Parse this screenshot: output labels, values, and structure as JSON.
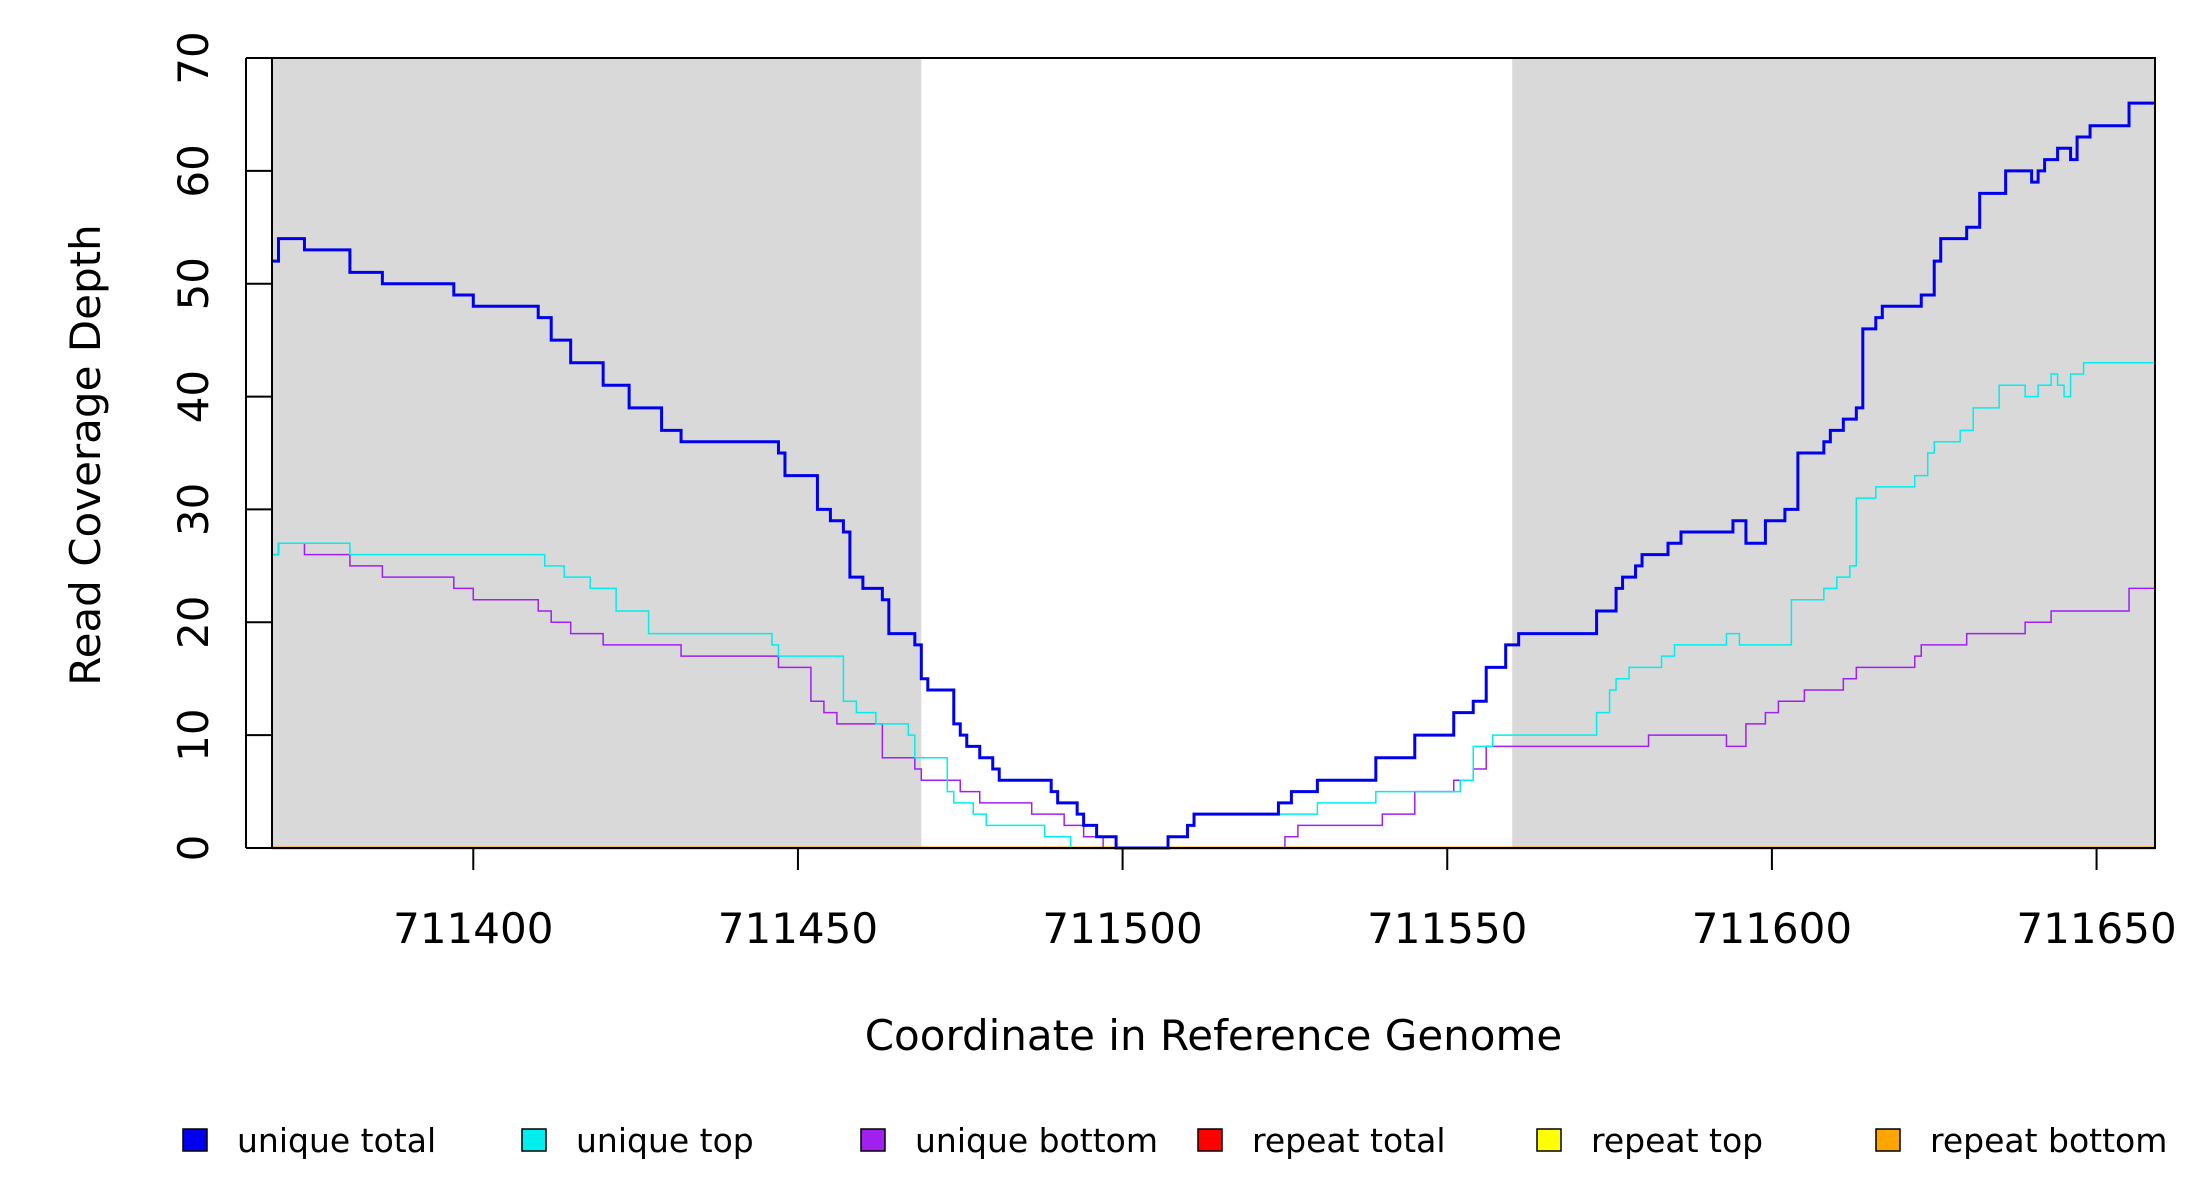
{
  "chart_data": {
    "type": "line",
    "xlabel": "Coordinate in Reference Genome",
    "ylabel": "Read Coverage Depth",
    "xlim": [
      711369,
      711659
    ],
    "ylim": [
      0,
      70
    ],
    "x_ticks": [
      711400,
      711450,
      711500,
      711550,
      711600,
      711650
    ],
    "x_tick_labels": [
      "711400",
      "711450",
      "711500",
      "711550",
      "711600",
      "711650"
    ],
    "y_ticks": [
      0,
      10,
      20,
      30,
      40,
      50,
      60,
      70
    ],
    "y_tick_labels": [
      "0",
      "10",
      "20",
      "30",
      "40",
      "50",
      "60",
      "70"
    ],
    "shaded_regions": [
      {
        "x": [
          711369,
          711469
        ],
        "color": "#d9d9d9"
      },
      {
        "x": [
          711560,
          711659
        ],
        "color": "#d9d9d9"
      }
    ],
    "grid": false,
    "legend_position": "bottom",
    "series": [
      {
        "name": "unique total",
        "color": "#0000ee",
        "stroke": "thick",
        "points": [
          [
            711369,
            52
          ],
          [
            711370,
            54
          ],
          [
            711374,
            53
          ],
          [
            711381,
            51
          ],
          [
            711386,
            50
          ],
          [
            711397,
            49
          ],
          [
            711400,
            48
          ],
          [
            711410,
            47
          ],
          [
            711412,
            45
          ],
          [
            711415,
            43
          ],
          [
            711420,
            41
          ],
          [
            711424,
            39
          ],
          [
            711429,
            37
          ],
          [
            711432,
            36
          ],
          [
            711447,
            35
          ],
          [
            711448,
            33
          ],
          [
            711453,
            30
          ],
          [
            711455,
            29
          ],
          [
            711457,
            28
          ],
          [
            711458,
            24
          ],
          [
            711460,
            23
          ],
          [
            711463,
            22
          ],
          [
            711464,
            19
          ],
          [
            711468,
            18
          ],
          [
            711469,
            15
          ],
          [
            711470,
            14
          ],
          [
            711474,
            11
          ],
          [
            711475,
            10
          ],
          [
            711476,
            9
          ],
          [
            711478,
            8
          ],
          [
            711480,
            7
          ],
          [
            711481,
            6
          ],
          [
            711489,
            5
          ],
          [
            711490,
            4
          ],
          [
            711493,
            3
          ],
          [
            711494,
            2
          ],
          [
            711496,
            1
          ],
          [
            711499,
            0
          ],
          [
            711507,
            1
          ],
          [
            711510,
            2
          ],
          [
            711511,
            3
          ],
          [
            711524,
            4
          ],
          [
            711526,
            5
          ],
          [
            711530,
            6
          ],
          [
            711539,
            8
          ],
          [
            711545,
            10
          ],
          [
            711551,
            12
          ],
          [
            711554,
            13
          ],
          [
            711556,
            16
          ],
          [
            711559,
            18
          ],
          [
            711561,
            19
          ],
          [
            711573,
            21
          ],
          [
            711576,
            23
          ],
          [
            711577,
            24
          ],
          [
            711579,
            25
          ],
          [
            711580,
            26
          ],
          [
            711584,
            27
          ],
          [
            711586,
            28
          ],
          [
            711594,
            29
          ],
          [
            711596,
            27
          ],
          [
            711599,
            29
          ],
          [
            711602,
            30
          ],
          [
            711604,
            35
          ],
          [
            711608,
            36
          ],
          [
            711609,
            37
          ],
          [
            711611,
            38
          ],
          [
            711613,
            39
          ],
          [
            711614,
            46
          ],
          [
            711616,
            47
          ],
          [
            711617,
            48
          ],
          [
            711623,
            49
          ],
          [
            711625,
            52
          ],
          [
            711626,
            54
          ],
          [
            711630,
            55
          ],
          [
            711632,
            58
          ],
          [
            711636,
            60
          ],
          [
            711640,
            59
          ],
          [
            711641,
            60
          ],
          [
            711642,
            61
          ],
          [
            711644,
            62
          ],
          [
            711646,
            61
          ],
          [
            711647,
            63
          ],
          [
            711649,
            64
          ],
          [
            711655,
            66
          ],
          [
            711659,
            66
          ]
        ]
      },
      {
        "name": "unique top",
        "color": "#00eeee",
        "stroke": "thin",
        "points": [
          [
            711369,
            26
          ],
          [
            711370,
            27
          ],
          [
            711381,
            26
          ],
          [
            711411,
            25
          ],
          [
            711414,
            24
          ],
          [
            711418,
            23
          ],
          [
            711422,
            21
          ],
          [
            711427,
            19
          ],
          [
            711446,
            18
          ],
          [
            711447,
            17
          ],
          [
            711457,
            13
          ],
          [
            711459,
            12
          ],
          [
            711462,
            11
          ],
          [
            711467,
            10
          ],
          [
            711468,
            8
          ],
          [
            711473,
            5
          ],
          [
            711474,
            4
          ],
          [
            711477,
            3
          ],
          [
            711479,
            2
          ],
          [
            711488,
            1
          ],
          [
            711492,
            0
          ],
          [
            711507,
            1
          ],
          [
            711510,
            2
          ],
          [
            711511,
            3
          ],
          [
            711530,
            4
          ],
          [
            711539,
            5
          ],
          [
            711552,
            6
          ],
          [
            711554,
            9
          ],
          [
            711557,
            10
          ],
          [
            711573,
            12
          ],
          [
            711575,
            14
          ],
          [
            711576,
            15
          ],
          [
            711578,
            16
          ],
          [
            711583,
            17
          ],
          [
            711585,
            18
          ],
          [
            711593,
            19
          ],
          [
            711595,
            18
          ],
          [
            711603,
            22
          ],
          [
            711608,
            23
          ],
          [
            711610,
            24
          ],
          [
            711612,
            25
          ],
          [
            711613,
            31
          ],
          [
            711616,
            32
          ],
          [
            711622,
            33
          ],
          [
            711624,
            35
          ],
          [
            711625,
            36
          ],
          [
            711629,
            37
          ],
          [
            711631,
            39
          ],
          [
            711635,
            41
          ],
          [
            711639,
            40
          ],
          [
            711641,
            41
          ],
          [
            711643,
            42
          ],
          [
            711644,
            41
          ],
          [
            711645,
            40
          ],
          [
            711646,
            42
          ],
          [
            711648,
            43
          ],
          [
            711659,
            43
          ]
        ]
      },
      {
        "name": "unique bottom",
        "color": "#a020f0",
        "stroke": "thin",
        "points": [
          [
            711369,
            26
          ],
          [
            711370,
            27
          ],
          [
            711374,
            26
          ],
          [
            711381,
            25
          ],
          [
            711386,
            24
          ],
          [
            711397,
            23
          ],
          [
            711400,
            22
          ],
          [
            711410,
            21
          ],
          [
            711412,
            20
          ],
          [
            711415,
            19
          ],
          [
            711420,
            18
          ],
          [
            711432,
            17
          ],
          [
            711447,
            16
          ],
          [
            711452,
            13
          ],
          [
            711454,
            12
          ],
          [
            711456,
            11
          ],
          [
            711463,
            8
          ],
          [
            711468,
            7
          ],
          [
            711469,
            6
          ],
          [
            711475,
            5
          ],
          [
            711478,
            4
          ],
          [
            711486,
            3
          ],
          [
            711491,
            2
          ],
          [
            711494,
            1
          ],
          [
            711497,
            0
          ],
          [
            711525,
            1
          ],
          [
            711527,
            2
          ],
          [
            711540,
            3
          ],
          [
            711545,
            5
          ],
          [
            711551,
            6
          ],
          [
            711554,
            7
          ],
          [
            711556,
            9
          ],
          [
            711560,
            9
          ],
          [
            711581,
            10
          ],
          [
            711593,
            9
          ],
          [
            711596,
            11
          ],
          [
            711599,
            12
          ],
          [
            711601,
            13
          ],
          [
            711605,
            14
          ],
          [
            711611,
            15
          ],
          [
            711613,
            16
          ],
          [
            711622,
            17
          ],
          [
            711623,
            18
          ],
          [
            711630,
            19
          ],
          [
            711639,
            20
          ],
          [
            711643,
            21
          ],
          [
            711655,
            23
          ],
          [
            711659,
            23
          ]
        ]
      },
      {
        "name": "repeat total",
        "color": "#ff0000",
        "stroke": "thin",
        "points": [
          [
            711369,
            0
          ],
          [
            711659,
            0
          ]
        ]
      },
      {
        "name": "repeat top",
        "color": "#ffff00",
        "stroke": "thin",
        "points": [
          [
            711369,
            0
          ],
          [
            711659,
            0
          ]
        ]
      },
      {
        "name": "repeat bottom",
        "color": "#ffa500",
        "stroke": "thick",
        "points": [
          [
            711369,
            0
          ],
          [
            711659,
            0
          ]
        ]
      }
    ]
  }
}
